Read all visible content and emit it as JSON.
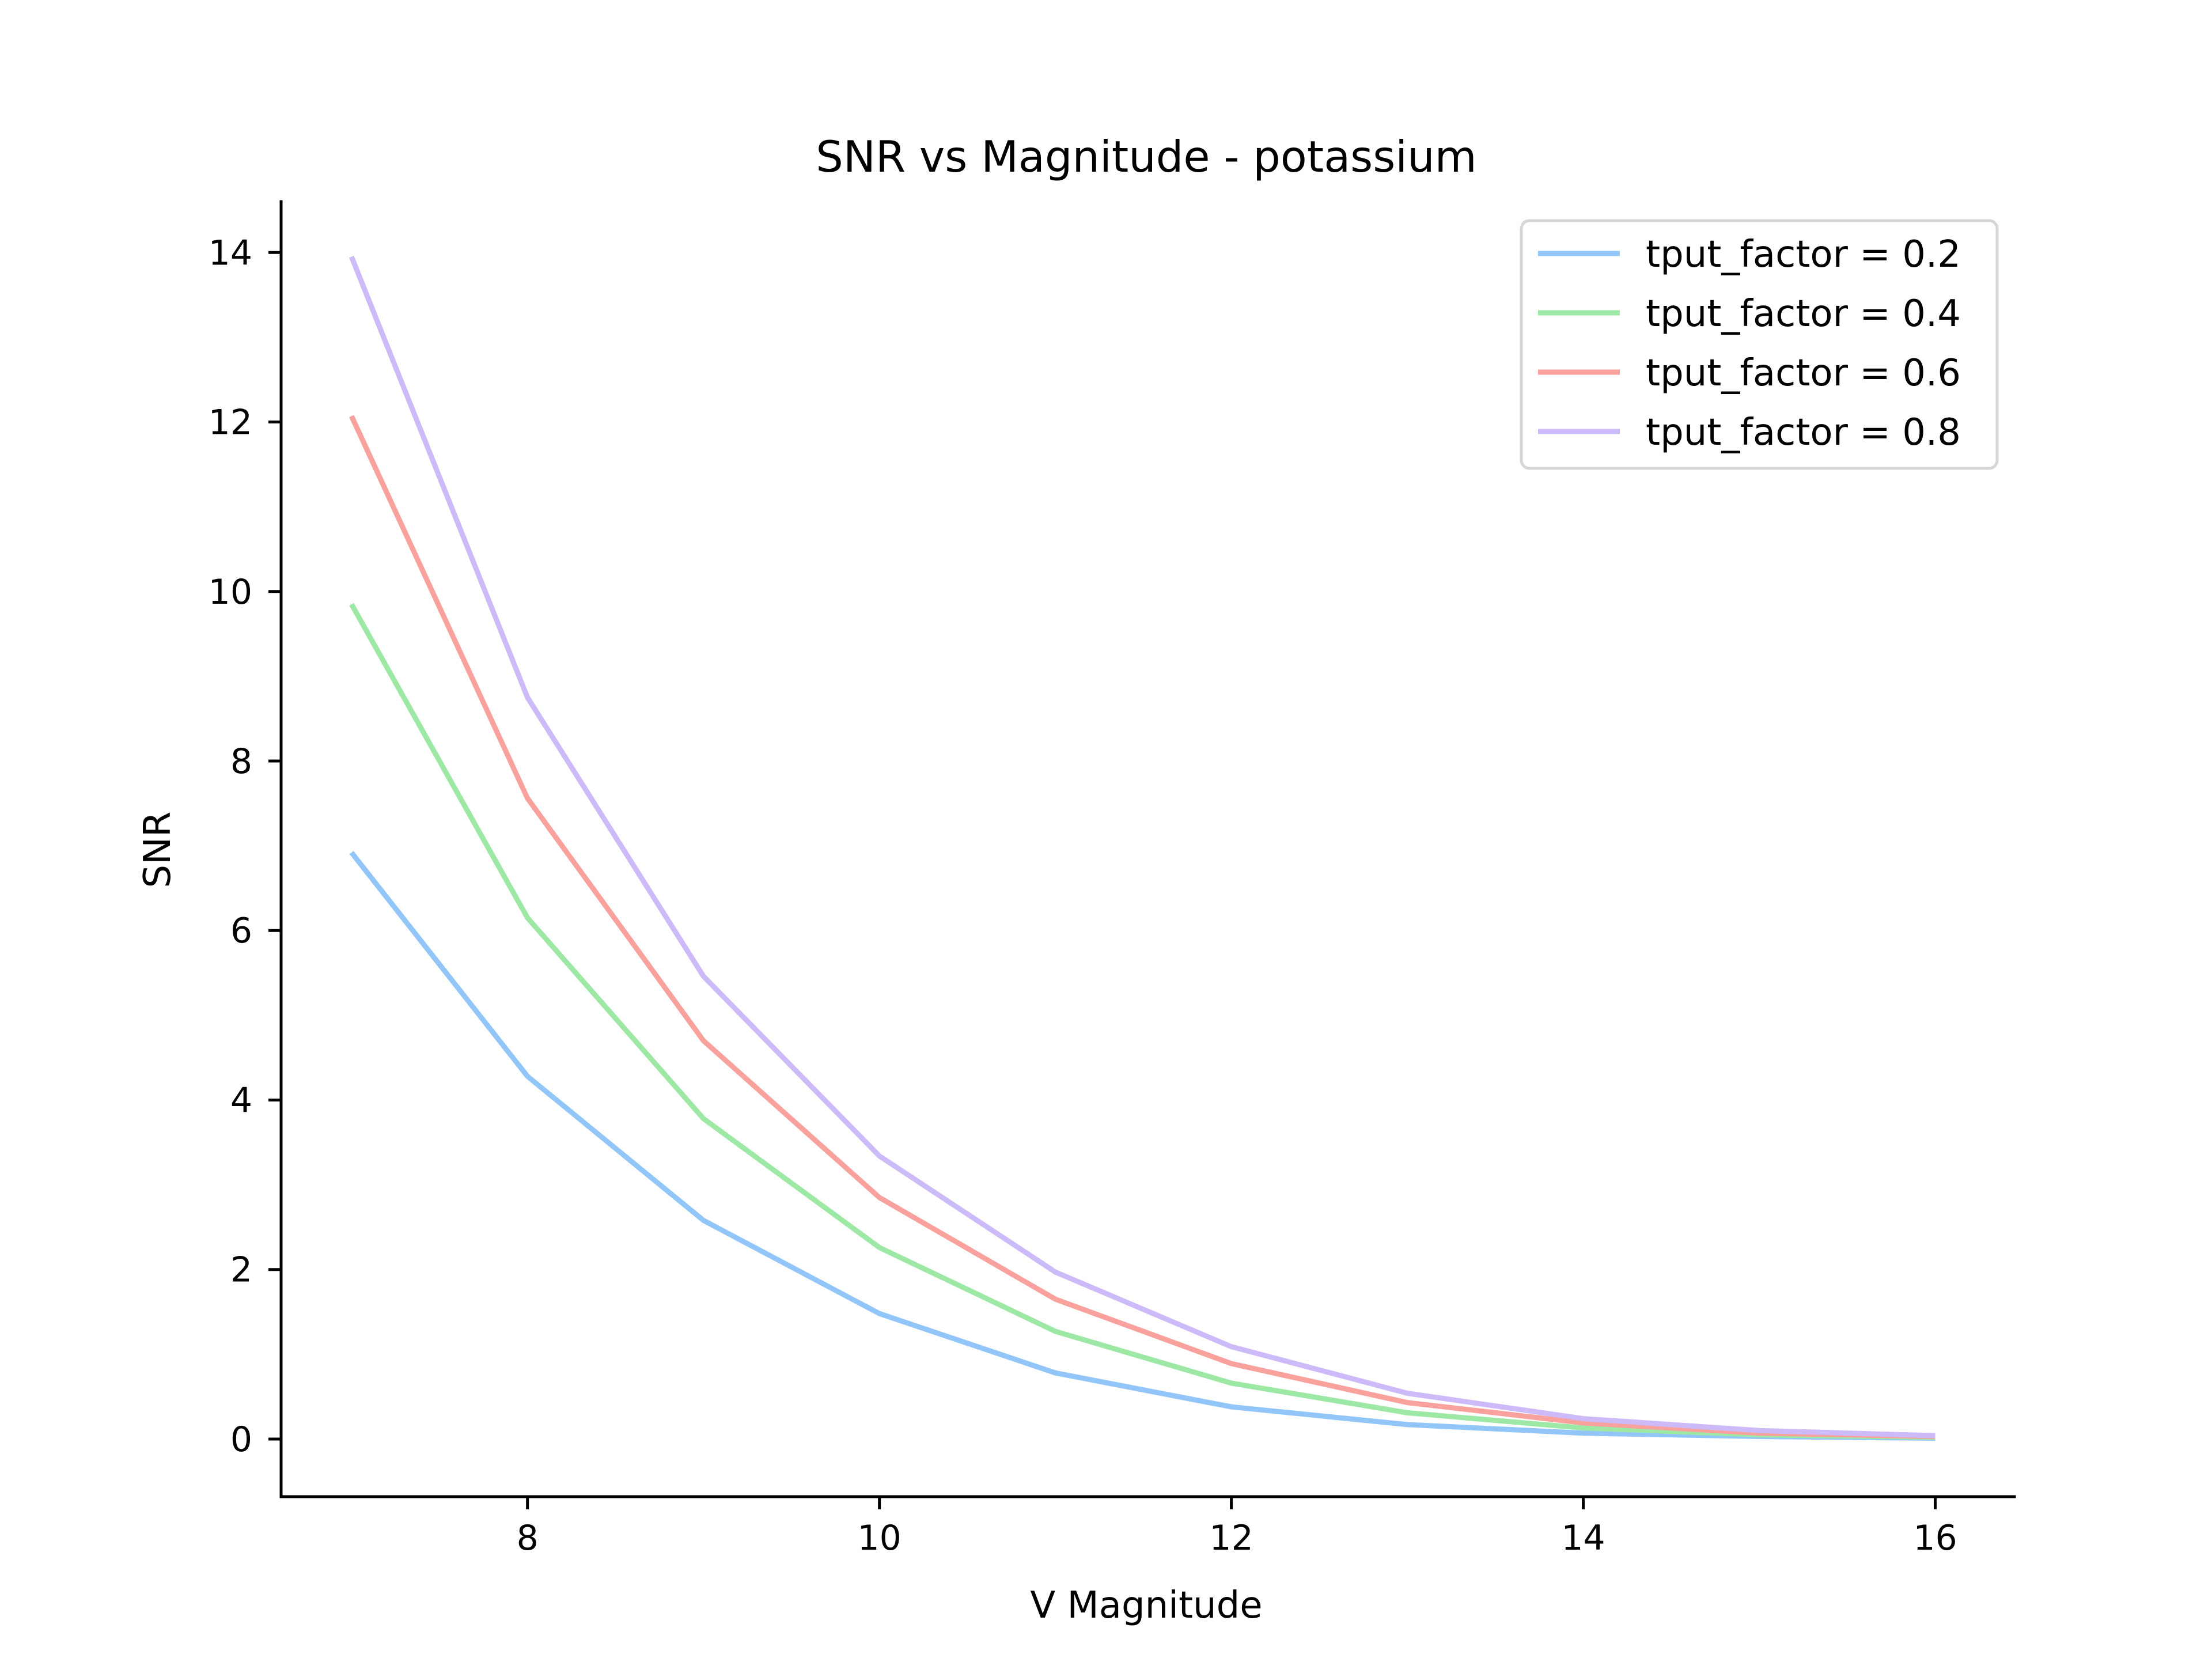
{
  "chart_data": {
    "type": "line",
    "title": "SNR vs Magnitude - potassium",
    "xlabel": "V Magnitude",
    "ylabel": "SNR",
    "xlim": [
      6.6,
      16.45
    ],
    "ylim": [
      -0.68,
      14.6
    ],
    "xticks": [
      8,
      10,
      12,
      14,
      16
    ],
    "yticks": [
      0,
      2,
      4,
      6,
      8,
      10,
      12,
      14
    ],
    "grid": false,
    "legend_position": "top-right",
    "x": [
      7,
      8,
      9,
      10,
      11,
      12,
      13,
      14,
      15,
      16
    ],
    "series": [
      {
        "name": "tput_factor = 0.2",
        "color": "#92c6f9",
        "values": [
          6.92,
          4.28,
          2.58,
          1.48,
          0.78,
          0.38,
          0.17,
          0.07,
          0.03,
          0.01
        ]
      },
      {
        "name": "tput_factor = 0.4",
        "color": "#9de8a4",
        "values": [
          9.85,
          6.15,
          3.78,
          2.26,
          1.27,
          0.66,
          0.31,
          0.13,
          0.05,
          0.02
        ]
      },
      {
        "name": "tput_factor = 0.6",
        "color": "#f9a19d",
        "values": [
          12.07,
          7.56,
          4.7,
          2.85,
          1.65,
          0.89,
          0.43,
          0.19,
          0.07,
          0.03
        ]
      },
      {
        "name": "tput_factor = 0.8",
        "color": "#cdbaf9",
        "values": [
          13.95,
          8.75,
          5.46,
          3.34,
          1.97,
          1.09,
          0.54,
          0.24,
          0.1,
          0.04
        ]
      }
    ]
  }
}
